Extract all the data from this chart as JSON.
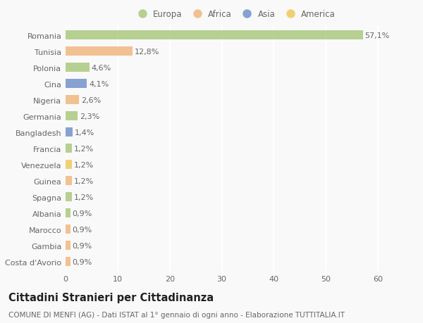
{
  "countries": [
    "Romania",
    "Tunisia",
    "Polonia",
    "Cina",
    "Nigeria",
    "Germania",
    "Bangladesh",
    "Francia",
    "Venezuela",
    "Guinea",
    "Spagna",
    "Albania",
    "Marocco",
    "Gambia",
    "Costa d'Avorio"
  ],
  "values": [
    57.1,
    12.8,
    4.6,
    4.1,
    2.6,
    2.3,
    1.4,
    1.2,
    1.2,
    1.2,
    1.2,
    0.9,
    0.9,
    0.9,
    0.9
  ],
  "labels": [
    "57,1%",
    "12,8%",
    "4,6%",
    "4,1%",
    "2,6%",
    "2,3%",
    "1,4%",
    "1,2%",
    "1,2%",
    "1,2%",
    "1,2%",
    "0,9%",
    "0,9%",
    "0,9%",
    "0,9%"
  ],
  "colors": [
    "#a8c87a",
    "#f0b57a",
    "#a8c87a",
    "#6e8fc7",
    "#f0b57a",
    "#a8c87a",
    "#6e8fc7",
    "#a8c87a",
    "#f0c857",
    "#f0b57a",
    "#a8c87a",
    "#a8c87a",
    "#f0b57a",
    "#f0b57a",
    "#f0b57a"
  ],
  "legend_labels": [
    "Europa",
    "Africa",
    "Asia",
    "America"
  ],
  "legend_colors": [
    "#a8c87a",
    "#f0b57a",
    "#6e8fc7",
    "#f0c857"
  ],
  "title": "Cittadini Stranieri per Cittadinanza",
  "subtitle": "COMUNE DI MENFI (AG) - Dati ISTAT al 1° gennaio di ogni anno - Elaborazione TUTTITALIA.IT",
  "xlim": [
    0,
    65
  ],
  "xticks": [
    0,
    10,
    20,
    30,
    40,
    50,
    60
  ],
  "background_color": "#f9f9f9",
  "grid_color": "#ffffff",
  "bar_height": 0.55,
  "label_fontsize": 8,
  "tick_fontsize": 8,
  "title_fontsize": 10.5,
  "subtitle_fontsize": 7.5
}
